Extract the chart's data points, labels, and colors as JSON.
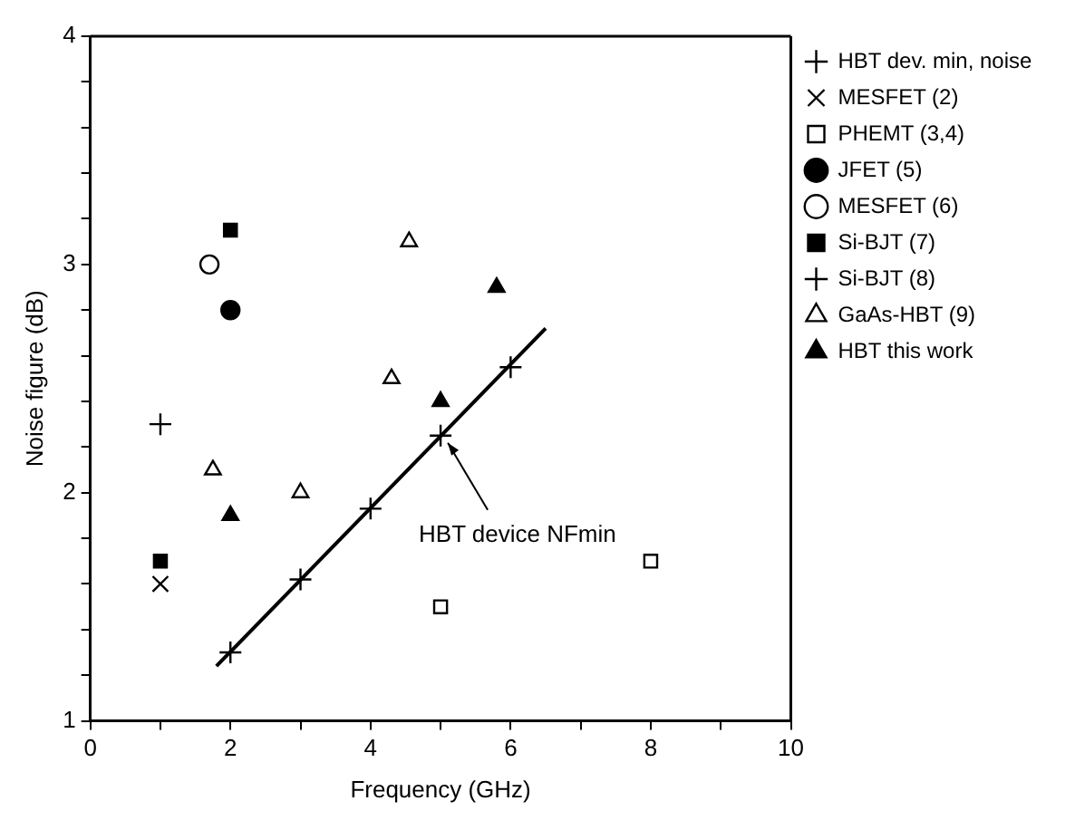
{
  "chart_data": {
    "type": "scatter",
    "xlabel": "Frequency (GHz)",
    "ylabel": "Noise figure (dB)",
    "xlim": [
      0,
      10
    ],
    "ylim": [
      1,
      4
    ],
    "xticks": [
      0,
      {
        "value": 1,
        "label": null
      },
      2,
      {
        "value": 3,
        "label": null
      },
      4,
      {
        "value": 5,
        "label": null
      },
      6,
      {
        "value": 7,
        "label": null
      },
      8,
      {
        "value": 9,
        "label": null
      },
      10
    ],
    "yticks": [
      1,
      {
        "value": 1.2,
        "label": null
      },
      {
        "value": 1.4,
        "label": null
      },
      {
        "value": 1.6,
        "label": null
      },
      {
        "value": 1.8,
        "label": null
      },
      2,
      {
        "value": 2.2,
        "label": null
      },
      {
        "value": 2.4,
        "label": null
      },
      {
        "value": 2.6,
        "label": null
      },
      {
        "value": 2.8,
        "label": null
      },
      3,
      {
        "value": 3.2,
        "label": null
      },
      {
        "value": 3.4,
        "label": null
      },
      {
        "value": 3.6,
        "label": null
      },
      {
        "value": 3.8,
        "label": null
      },
      4
    ],
    "grid": false,
    "legend": "top right",
    "annotations": [
      {
        "text": "HBT device NFmin",
        "x": 5,
        "y": 2.25
      }
    ],
    "series": [
      {
        "type": "line",
        "color": "#000000",
        "marker": "none",
        "x": [
          1.8,
          6.5
        ],
        "values": [
          1.24,
          2.72
        ]
      },
      {
        "name": "HBT dev. min, noise",
        "color": "#000000",
        "marker": "cross",
        "x": [
          2,
          3,
          4,
          5,
          6
        ],
        "values": [
          1.3,
          1.62,
          1.93,
          2.25,
          2.55
        ]
      },
      {
        "name": "MESFET (2)",
        "color": "#000000",
        "marker": "x",
        "x": [
          1
        ],
        "values": [
          1.6
        ]
      },
      {
        "name": "PHEMT (3,4)",
        "color": "#000000",
        "marker": "square-open",
        "x": [
          5,
          8
        ],
        "values": [
          1.5,
          1.7
        ]
      },
      {
        "name": "JFET (5)",
        "color": "#000000",
        "marker": "circle",
        "x": [
          2
        ],
        "values": [
          2.8
        ]
      },
      {
        "name": "MESFET (6)",
        "color": "#000000",
        "marker": "circle-open",
        "x": [
          1.7
        ],
        "values": [
          3.0
        ]
      },
      {
        "name": "Si-BJT (7)",
        "color": "#000000",
        "marker": "square",
        "x": [
          2,
          1
        ],
        "values": [
          3.15,
          1.7
        ]
      },
      {
        "name": "Si-BJT (8)",
        "color": "#000000",
        "marker": "cross",
        "x": [
          1
        ],
        "values": [
          2.3
        ]
      },
      {
        "name": "GaAs-HBT (9)",
        "color": "#000000",
        "marker": "triangle-open",
        "x": [
          1.75,
          3,
          4.3,
          4.55
        ],
        "values": [
          2.1,
          2.0,
          2.5,
          3.1
        ]
      },
      {
        "name": "HBT this work",
        "color": "#000000",
        "marker": "triangle",
        "x": [
          2,
          5,
          5.8
        ],
        "values": [
          1.9,
          2.4,
          2.9
        ]
      }
    ]
  }
}
